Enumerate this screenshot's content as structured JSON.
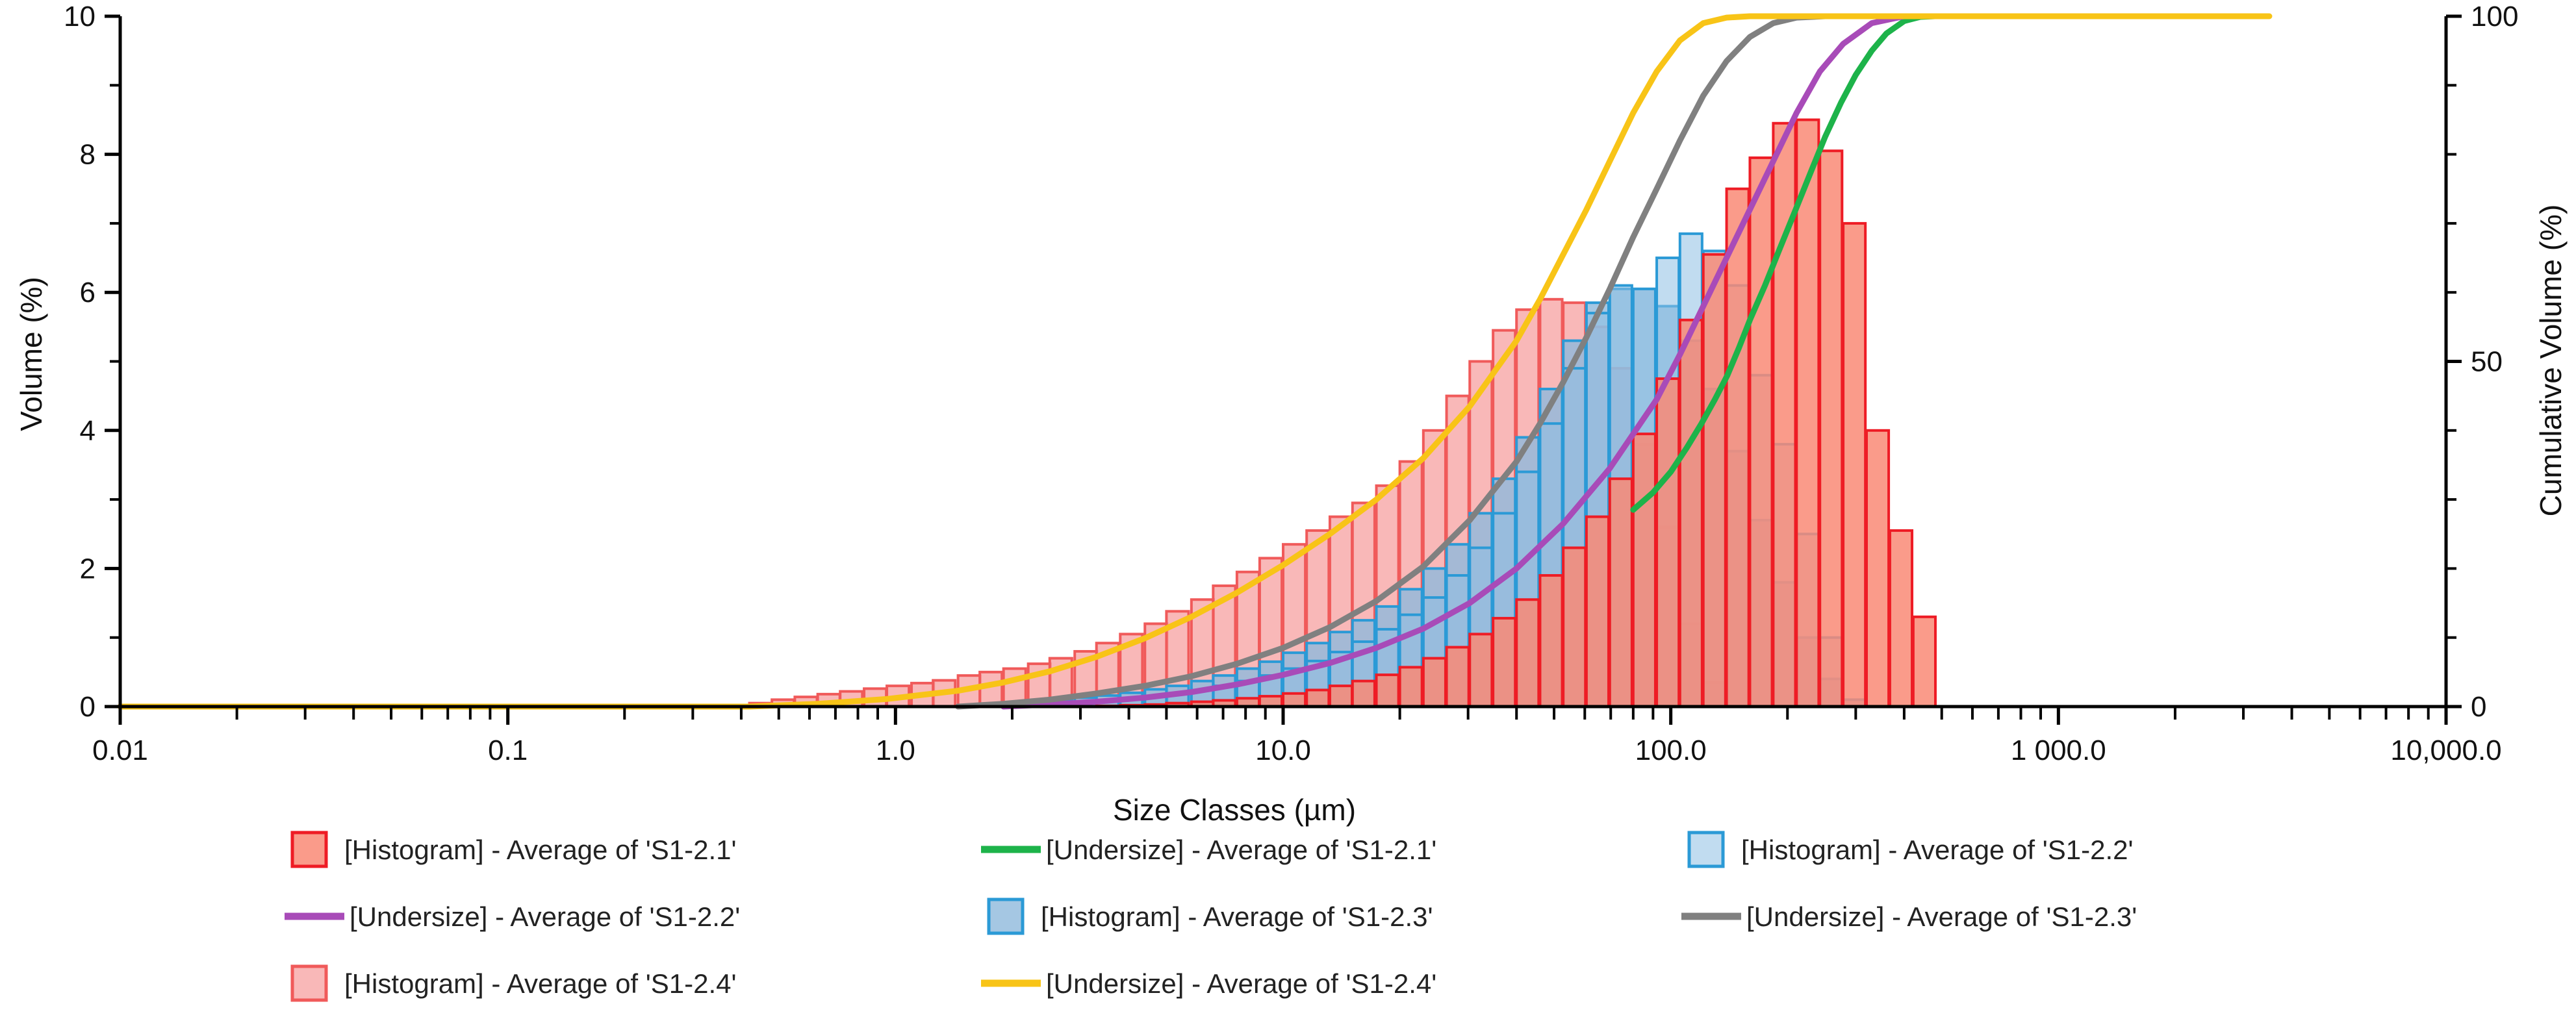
{
  "chart_data": {
    "type": "bar",
    "x_scale": "log",
    "xlabel": "Size Classes (µm)",
    "ylabel": "Volume (%)",
    "y2label": "Cumulative Volume (%)",
    "xlim": [
      0.01,
      10000
    ],
    "ylim": [
      0,
      10
    ],
    "y2lim": [
      0,
      100
    ],
    "x_ticks": [
      {
        "value": 0.01,
        "label": "0.01"
      },
      {
        "value": 0.1,
        "label": "0.1"
      },
      {
        "value": 1,
        "label": "1.0"
      },
      {
        "value": 10,
        "label": "10.0"
      },
      {
        "value": 100,
        "label": "100.0"
      },
      {
        "value": 1000,
        "label": "1 000.0"
      },
      {
        "value": 10000,
        "label": "10,000.0"
      }
    ],
    "y_ticks": [
      {
        "value": 0,
        "label": "0"
      },
      {
        "value": 2,
        "label": "2"
      },
      {
        "value": 4,
        "label": "4"
      },
      {
        "value": 6,
        "label": "6"
      },
      {
        "value": 8,
        "label": "8"
      },
      {
        "value": 10,
        "label": "10"
      }
    ],
    "y2_ticks": [
      {
        "value": 0,
        "label": "0"
      },
      {
        "value": 50,
        "label": "50"
      },
      {
        "value": 100,
        "label": "100"
      }
    ],
    "series": [
      {
        "name": "[Histogram] - Average of 'S1-2.4'",
        "type": "histogram",
        "fill": "#f7a0a0",
        "stroke": "#f05a5a",
        "fill_opacity": 0.75,
        "x": [
          0.42,
          0.48,
          0.55,
          0.63,
          0.72,
          0.83,
          0.95,
          1.1,
          1.25,
          1.45,
          1.65,
          1.9,
          2.2,
          2.5,
          2.9,
          3.3,
          3.8,
          4.4,
          5.0,
          5.8,
          6.6,
          7.6,
          8.7,
          10.0,
          11.5,
          13.2,
          15.1,
          17.4,
          20.0,
          23.0,
          26.4,
          30.3,
          34.8,
          40.0,
          46.0,
          52.8,
          60.6,
          69.6,
          80.0,
          92.0,
          105.6,
          121.3
        ],
        "values": [
          0.05,
          0.1,
          0.14,
          0.18,
          0.22,
          0.26,
          0.3,
          0.34,
          0.38,
          0.45,
          0.5,
          0.55,
          0.62,
          0.7,
          0.8,
          0.92,
          1.05,
          1.2,
          1.38,
          1.55,
          1.75,
          1.95,
          2.15,
          2.35,
          2.55,
          2.75,
          2.95,
          3.2,
          3.55,
          4.0,
          4.5,
          5.0,
          5.45,
          5.75,
          5.9,
          5.85,
          5.5,
          4.9,
          3.8,
          2.6,
          1.2,
          0.35
        ]
      },
      {
        "name": "[Histogram] - Average of 'S1-2.3'",
        "type": "histogram",
        "fill": "#8fb9dc",
        "stroke": "#2b9ad6",
        "fill_opacity": 0.8,
        "x": [
          1.45,
          1.65,
          1.9,
          2.2,
          2.5,
          2.9,
          3.3,
          3.8,
          4.4,
          5.0,
          5.8,
          6.6,
          7.6,
          8.7,
          10.0,
          11.5,
          13.2,
          15.1,
          17.4,
          20.0,
          23.0,
          26.4,
          30.3,
          34.8,
          40.0,
          46.0,
          52.8,
          60.6,
          69.6,
          80.0,
          92.0,
          105.6,
          121.3,
          139.3,
          160.0,
          183.8,
          211.1,
          242.5,
          278.5
        ],
        "values": [
          0.02,
          0.04,
          0.06,
          0.08,
          0.1,
          0.13,
          0.16,
          0.2,
          0.25,
          0.3,
          0.37,
          0.45,
          0.55,
          0.65,
          0.78,
          0.92,
          1.08,
          1.25,
          1.45,
          1.7,
          2.0,
          2.35,
          2.8,
          3.3,
          3.9,
          4.6,
          5.3,
          5.85,
          6.05,
          6.05,
          5.8,
          5.3,
          4.6,
          3.7,
          2.7,
          1.8,
          1.0,
          0.4,
          0.1
        ]
      },
      {
        "name": "[Histogram] - Average of 'S1-2.2'",
        "type": "histogram",
        "fill": "#8ec0e4",
        "stroke": "#2b9ad6",
        "fill_opacity": 0.55,
        "x": [
          1.9,
          2.2,
          2.5,
          2.9,
          3.3,
          3.8,
          4.4,
          5.0,
          5.8,
          6.6,
          7.6,
          8.7,
          10.0,
          11.5,
          13.2,
          15.1,
          17.4,
          20.0,
          23.0,
          26.4,
          30.3,
          34.8,
          40.0,
          46.0,
          52.8,
          60.6,
          69.6,
          80.0,
          92.0,
          105.6,
          121.3,
          139.3,
          160.0,
          183.8,
          211.1,
          242.5
        ],
        "values": [
          0.02,
          0.03,
          0.05,
          0.07,
          0.09,
          0.12,
          0.15,
          0.19,
          0.24,
          0.3,
          0.37,
          0.45,
          0.55,
          0.66,
          0.79,
          0.94,
          1.12,
          1.33,
          1.58,
          1.9,
          2.3,
          2.8,
          3.4,
          4.1,
          4.9,
          5.7,
          6.1,
          6.05,
          6.5,
          6.85,
          6.6,
          6.1,
          4.8,
          3.8,
          2.5,
          1.0
        ]
      },
      {
        "name": "[Histogram] - Average of 'S1-2.1'",
        "type": "histogram",
        "fill": "#f98a76",
        "stroke": "#ee1c25",
        "fill_opacity": 0.85,
        "x": [
          3.3,
          3.8,
          4.4,
          5.0,
          5.8,
          6.6,
          7.6,
          8.7,
          10.0,
          11.5,
          13.2,
          15.1,
          17.4,
          20.0,
          23.0,
          26.4,
          30.3,
          34.8,
          40.0,
          46.0,
          52.8,
          60.6,
          69.6,
          80.0,
          92.0,
          105.6,
          121.3,
          139.3,
          160.0,
          183.8,
          211.1,
          242.5,
          278.5,
          319.9,
          367.5,
          422.2
        ],
        "values": [
          0.01,
          0.02,
          0.03,
          0.05,
          0.07,
          0.09,
          0.12,
          0.15,
          0.19,
          0.24,
          0.3,
          0.37,
          0.46,
          0.57,
          0.7,
          0.86,
          1.05,
          1.28,
          1.55,
          1.9,
          2.3,
          2.75,
          3.3,
          3.95,
          4.75,
          5.6,
          6.55,
          7.5,
          7.95,
          8.45,
          8.5,
          8.05,
          7.0,
          4.0,
          2.55,
          1.3
        ]
      },
      {
        "name": "[Undersize] - Average of 'S1-2.1'",
        "type": "line",
        "color": "#1db34a",
        "x": [
          80,
          90,
          100,
          110,
          120,
          130,
          140,
          150,
          160,
          175,
          190,
          210,
          230,
          250,
          275,
          300,
          330,
          360,
          400,
          440,
          480
        ],
        "y2": [
          28.5,
          31,
          34,
          37.5,
          41,
          44.5,
          48,
          52,
          56,
          61,
          66,
          72,
          77.5,
          82.5,
          87.5,
          91.5,
          95,
          97.5,
          99.3,
          99.9,
          100
        ]
      },
      {
        "name": "[Undersize] - Average of 'S1-2.2'",
        "type": "line",
        "color": "#a84bb8",
        "x": [
          1.9,
          2.5,
          3.3,
          4.4,
          5.8,
          7.6,
          10,
          13.2,
          17.4,
          23,
          30.3,
          40,
          52.8,
          69.6,
          92,
          105.6,
          121.3,
          139.3,
          160,
          183.8,
          211.1,
          242.5,
          278.5,
          330,
          400
        ],
        "y2": [
          0,
          0.3,
          0.7,
          1.3,
          2.1,
          3.2,
          4.6,
          6.3,
          8.5,
          11.3,
          15,
          20,
          26.5,
          34.5,
          44.5,
          51,
          58,
          65,
          72,
          79,
          86,
          92,
          96,
          99,
          100
        ]
      },
      {
        "name": "[Undersize] - Average of 'S1-2.3'",
        "type": "line",
        "color": "#808080",
        "x": [
          1.45,
          1.9,
          2.5,
          3.3,
          4.4,
          5.8,
          7.6,
          10,
          13.2,
          17.4,
          23,
          30.3,
          40,
          46,
          52.8,
          60.6,
          69.6,
          80,
          92,
          105.6,
          121.3,
          139.3,
          160,
          183.8,
          211.1,
          250
        ],
        "y2": [
          0,
          0.4,
          1,
          1.9,
          3,
          4.4,
          6.2,
          8.5,
          11.5,
          15.3,
          20.3,
          27,
          35.5,
          41,
          47,
          53.5,
          60.5,
          68,
          75,
          82,
          88.5,
          93.5,
          97,
          99,
          99.8,
          100
        ]
      },
      {
        "name": "[Undersize] - Average of 'S1-2.4'",
        "type": "line",
        "color": "#f8c417",
        "x": [
          0.01,
          0.1,
          0.42,
          0.63,
          0.95,
          1.45,
          1.9,
          2.5,
          3.3,
          4.4,
          5.8,
          7.6,
          10,
          13.2,
          17.4,
          23,
          30.3,
          40,
          46,
          52.8,
          60.6,
          69.6,
          80,
          92,
          105.6,
          121.3,
          139.3,
          160,
          3500
        ],
        "y2": [
          0,
          0,
          0,
          0.4,
          1.1,
          2.3,
          3.5,
          5.1,
          7.2,
          9.9,
          13,
          16.5,
          20.5,
          25,
          30,
          36,
          43.5,
          53,
          59,
          65.5,
          72,
          79,
          86,
          92,
          96.5,
          99,
          99.8,
          100,
          100
        ]
      }
    ],
    "legend": [
      {
        "series": 3,
        "label": "[Histogram] - Average of 'S1-2.1'"
      },
      {
        "series": 4,
        "label": "[Undersize] - Average of 'S1-2.1'"
      },
      {
        "series": 2,
        "label": "[Histogram] - Average of 'S1-2.2'"
      },
      {
        "series": 5,
        "label": "[Undersize] - Average of 'S1-2.2'"
      },
      {
        "series": 1,
        "label": "[Histogram] - Average of 'S1-2.3'"
      },
      {
        "series": 6,
        "label": "[Undersize] - Average of 'S1-2.3'"
      },
      {
        "series": 0,
        "label": "[Histogram] - Average of 'S1-2.4'"
      },
      {
        "series": 7,
        "label": "[Undersize] - Average of 'S1-2.4'"
      }
    ]
  }
}
